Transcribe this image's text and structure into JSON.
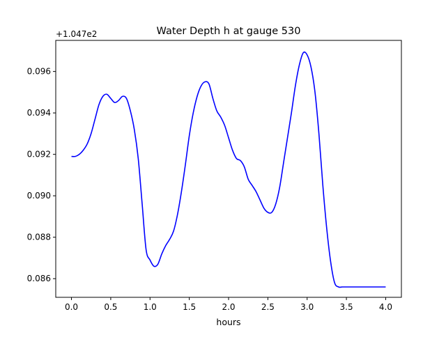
{
  "chart_data": {
    "type": "line",
    "title": "Water Depth h at gauge 530",
    "xlabel": "hours",
    "ylabel": "",
    "offset_label": "+1.047e2",
    "xlim": [
      -0.2,
      4.2
    ],
    "ylim": [
      0.0851,
      0.0975
    ],
    "xticks": [
      0.0,
      0.5,
      1.0,
      1.5,
      2.0,
      2.5,
      3.0,
      3.5,
      4.0
    ],
    "xtick_labels": [
      "0.0",
      "0.5",
      "1.0",
      "1.5",
      "2.0",
      "2.5",
      "3.0",
      "3.5",
      "4.0"
    ],
    "yticks": [
      0.086,
      0.088,
      0.09,
      0.092,
      0.094,
      0.096
    ],
    "ytick_labels": [
      "0.086",
      "0.088",
      "0.090",
      "0.092",
      "0.094",
      "0.096"
    ],
    "grid": false,
    "series": [
      {
        "color": "#0000ff",
        "x": [
          0.0,
          0.05,
          0.1,
          0.15,
          0.2,
          0.25,
          0.3,
          0.35,
          0.4,
          0.45,
          0.5,
          0.55,
          0.6,
          0.65,
          0.7,
          0.75,
          0.8,
          0.85,
          0.9,
          0.95,
          1.0,
          1.05,
          1.1,
          1.15,
          1.2,
          1.25,
          1.3,
          1.35,
          1.4,
          1.45,
          1.5,
          1.55,
          1.6,
          1.65,
          1.7,
          1.75,
          1.8,
          1.85,
          1.9,
          1.95,
          2.0,
          2.05,
          2.1,
          2.15,
          2.2,
          2.25,
          2.3,
          2.35,
          2.4,
          2.45,
          2.5,
          2.55,
          2.6,
          2.65,
          2.7,
          2.75,
          2.8,
          2.85,
          2.9,
          2.95,
          3.0,
          3.05,
          3.1,
          3.15,
          3.2,
          3.25,
          3.3,
          3.35,
          3.4,
          3.45,
          3.5,
          3.55,
          3.6,
          3.65,
          3.7,
          3.75,
          3.8,
          3.85,
          3.9,
          3.95,
          4.0
        ],
        "y": [
          0.0919,
          0.0919,
          0.092,
          0.0922,
          0.0925,
          0.093,
          0.0937,
          0.0944,
          0.0948,
          0.0949,
          0.0947,
          0.0945,
          0.0946,
          0.0948,
          0.0947,
          0.0941,
          0.0932,
          0.0918,
          0.0896,
          0.0874,
          0.0869,
          0.0866,
          0.0867,
          0.0872,
          0.0876,
          0.0879,
          0.0883,
          0.0891,
          0.0902,
          0.0915,
          0.0929,
          0.094,
          0.0948,
          0.0953,
          0.0955,
          0.0954,
          0.0947,
          0.0941,
          0.0938,
          0.0934,
          0.0928,
          0.0922,
          0.0918,
          0.0917,
          0.0914,
          0.0908,
          0.0905,
          0.0902,
          0.0898,
          0.0894,
          0.0892,
          0.0892,
          0.0896,
          0.0904,
          0.0916,
          0.0928,
          0.094,
          0.0953,
          0.0963,
          0.0969,
          0.0968,
          0.0962,
          0.095,
          0.093,
          0.0905,
          0.0884,
          0.0868,
          0.0858,
          0.0856,
          0.0856,
          0.0856,
          0.0856,
          0.0856,
          0.0856,
          0.0856,
          0.0856,
          0.0856,
          0.0856,
          0.0856,
          0.0856,
          0.0856
        ]
      }
    ]
  }
}
